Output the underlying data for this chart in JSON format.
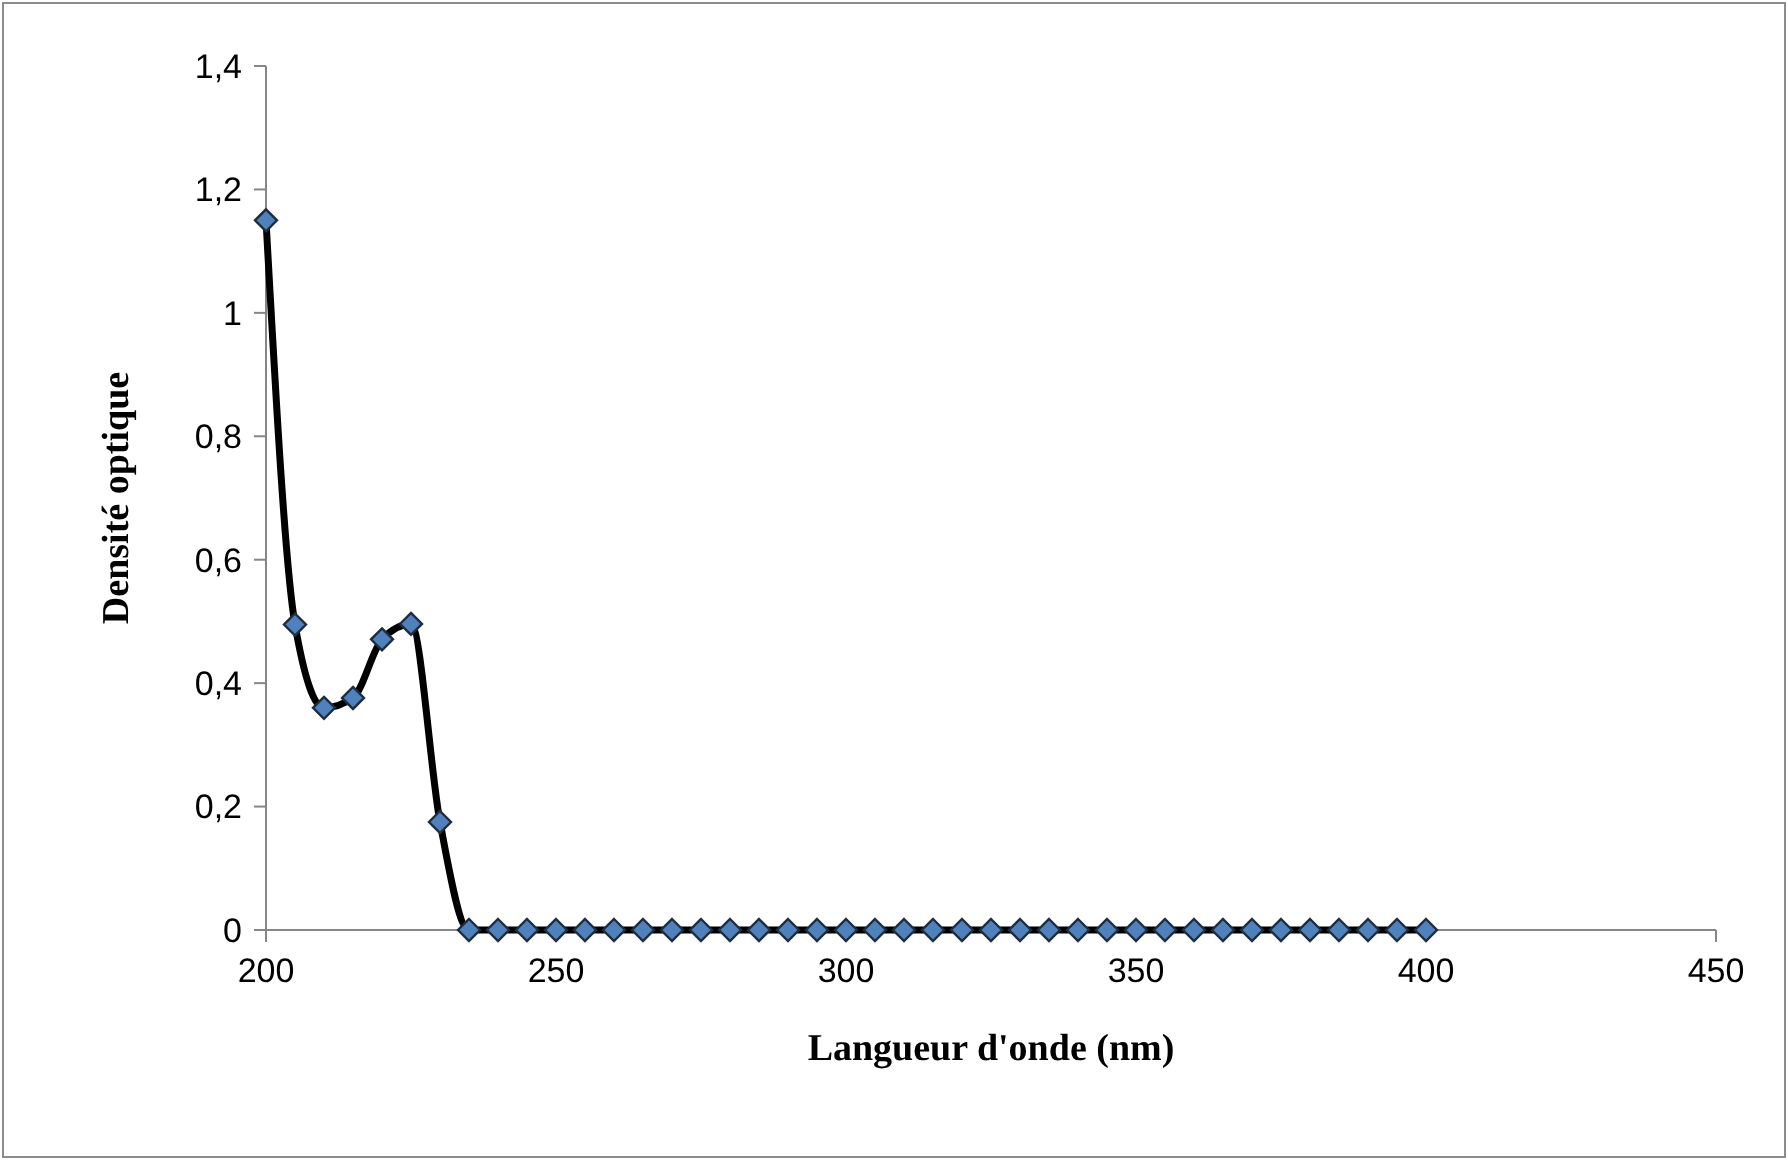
{
  "chart_data": {
    "type": "line",
    "xlabel": "Langueur d'onde (nm)",
    "ylabel": "Densité optique",
    "x": [
      200,
      205,
      210,
      215,
      220,
      225,
      230,
      235,
      240,
      245,
      250,
      255,
      260,
      265,
      270,
      275,
      280,
      285,
      290,
      295,
      300,
      305,
      310,
      315,
      320,
      325,
      330,
      335,
      340,
      345,
      350,
      355,
      360,
      365,
      370,
      375,
      380,
      385,
      390,
      395,
      400
    ],
    "series": [
      {
        "color": "#4f81bd",
        "values": [
          1.15,
          0.495,
          0.36,
          0.376,
          0.471,
          0.496,
          0.175,
          0,
          0,
          0,
          0,
          0,
          0,
          0,
          0,
          0,
          0,
          0,
          0,
          0,
          0,
          0,
          0,
          0,
          0,
          0,
          0,
          0,
          0,
          0,
          0,
          0,
          0,
          0,
          0,
          0,
          0,
          0,
          0,
          0,
          0
        ]
      }
    ],
    "xlim": [
      200,
      450
    ],
    "xticks": [
      200,
      250,
      300,
      350,
      400,
      450
    ],
    "ylim": [
      0,
      1.4
    ],
    "yticks": [
      0,
      {
        "value": 0.2,
        "label": "0,2"
      },
      {
        "value": 0.4,
        "label": "0,4"
      },
      {
        "value": 0.6,
        "label": "0,6"
      },
      {
        "value": 0.8,
        "label": "0,8"
      },
      1,
      {
        "value": 1.2,
        "label": "1,2"
      },
      {
        "value": 1.4,
        "label": "1,4"
      }
    ],
    "grid": false,
    "marker": "diamond",
    "line_style": "solid"
  }
}
